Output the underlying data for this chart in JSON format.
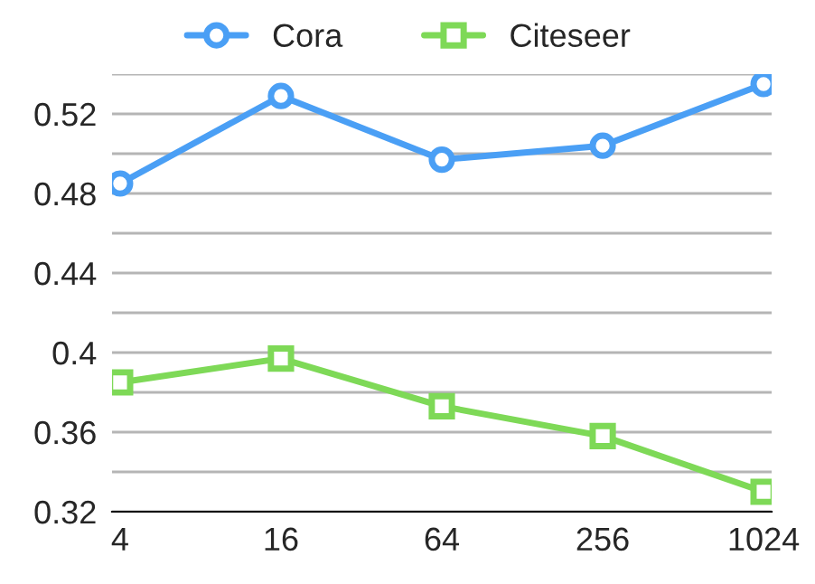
{
  "chart_data": {
    "type": "line",
    "categories": [
      "4",
      "16",
      "64",
      "256",
      "1024"
    ],
    "series": [
      {
        "name": "Cora",
        "color": "#4a9ff5",
        "marker": "circle",
        "values": [
          0.485,
          0.529,
          0.497,
          0.504,
          0.535
        ]
      },
      {
        "name": "Citeseer",
        "color": "#7ed957",
        "marker": "square",
        "values": [
          0.385,
          0.397,
          0.373,
          0.358,
          0.33
        ]
      }
    ],
    "ylim": [
      0.32,
      0.54
    ],
    "yticks": [
      0.32,
      {
        "value": 0.34,
        "label": null
      },
      0.36,
      {
        "value": 0.38,
        "label": null
      },
      0.4,
      {
        "value": 0.42,
        "label": null
      },
      0.44,
      {
        "value": 0.46,
        "label": null
      },
      0.48,
      {
        "value": 0.5,
        "label": null
      },
      0.52,
      {
        "value": 0.54,
        "label": null
      }
    ],
    "grid": "y",
    "legend": "top",
    "line_style": "solid"
  }
}
